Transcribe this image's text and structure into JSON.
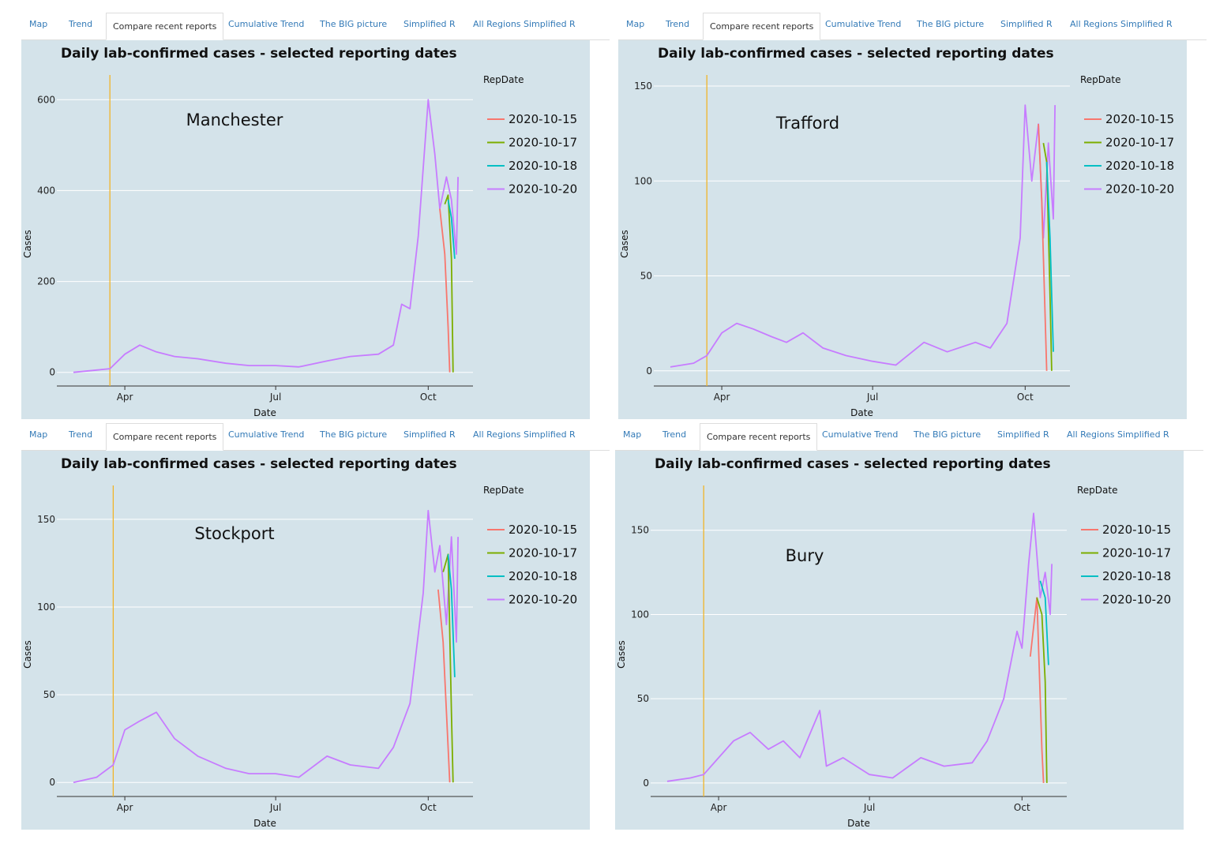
{
  "tabs": [
    "Map",
    "Trend",
    "Compare recent reports",
    "Cumulative Trend",
    "The BIG picture",
    "Simplified R",
    "All Regions Simplified R"
  ],
  "active_tab": 2,
  "colors": {
    "2020-10-15": "#f8766d",
    "2020-10-17": "#7cae00",
    "2020-10-18": "#00bfc4",
    "2020-10-20": "#c77cff",
    "vline": "#f0b429",
    "plot_bg": "#d4e3ea"
  },
  "chart_data": [
    {
      "type": "line",
      "region": "Manchester",
      "title": "Daily lab-confirmed cases - selected reporting dates",
      "xlabel": "Date",
      "ylabel": "Cases",
      "legend_title": "RepDate",
      "legend": [
        "2020-10-15",
        "2020-10-17",
        "2020-10-18",
        "2020-10-20"
      ],
      "x_ticks": [
        "Apr",
        "Jul",
        "Oct"
      ],
      "y_ticks": [
        0,
        200,
        400,
        600
      ],
      "ylim": [
        -30,
        630
      ],
      "vline": "2020-03-23",
      "series": [
        {
          "name": "2020-10-20",
          "dates": [
            "2020-03-01",
            "2020-03-15",
            "2020-03-23",
            "2020-04-01",
            "2020-04-10",
            "2020-04-20",
            "2020-05-01",
            "2020-05-15",
            "2020-06-01",
            "2020-06-15",
            "2020-07-01",
            "2020-07-15",
            "2020-08-01",
            "2020-08-15",
            "2020-09-01",
            "2020-09-10",
            "2020-09-15",
            "2020-09-20",
            "2020-09-25",
            "2020-10-01",
            "2020-10-05",
            "2020-10-08",
            "2020-10-12",
            "2020-10-15",
            "2020-10-18",
            "2020-10-19"
          ],
          "values": [
            0,
            5,
            8,
            40,
            60,
            45,
            35,
            30,
            20,
            15,
            15,
            12,
            25,
            35,
            40,
            60,
            150,
            140,
            300,
            600,
            480,
            360,
            430,
            380,
            260,
            430
          ]
        },
        {
          "name": "2020-10-15",
          "dates": [
            "2020-10-08",
            "2020-10-11",
            "2020-10-13",
            "2020-10-14"
          ],
          "values": [
            360,
            260,
            100,
            0
          ]
        },
        {
          "name": "2020-10-17",
          "dates": [
            "2020-10-11",
            "2020-10-13",
            "2020-10-15",
            "2020-10-16"
          ],
          "values": [
            370,
            390,
            250,
            0
          ]
        },
        {
          "name": "2020-10-18",
          "dates": [
            "2020-10-13",
            "2020-10-15",
            "2020-10-17"
          ],
          "values": [
            380,
            340,
            250
          ]
        }
      ]
    },
    {
      "type": "line",
      "region": "Trafford",
      "title": "Daily lab-confirmed cases - selected reporting dates",
      "xlabel": "Date",
      "ylabel": "Cases",
      "legend_title": "RepDate",
      "legend": [
        "2020-10-15",
        "2020-10-17",
        "2020-10-18",
        "2020-10-20"
      ],
      "x_ticks": [
        "Apr",
        "Jul",
        "Oct"
      ],
      "y_ticks": [
        0,
        50,
        100,
        150
      ],
      "ylim": [
        -8,
        150
      ],
      "vline": "2020-03-23",
      "series": [
        {
          "name": "2020-10-20",
          "dates": [
            "2020-03-01",
            "2020-03-15",
            "2020-03-23",
            "2020-04-01",
            "2020-04-10",
            "2020-04-20",
            "2020-05-01",
            "2020-05-10",
            "2020-05-20",
            "2020-06-01",
            "2020-06-15",
            "2020-07-01",
            "2020-07-15",
            "2020-08-01",
            "2020-08-15",
            "2020-09-01",
            "2020-09-10",
            "2020-09-20",
            "2020-09-28",
            "2020-10-01",
            "2020-10-05",
            "2020-10-09",
            "2020-10-12",
            "2020-10-15",
            "2020-10-18",
            "2020-10-19"
          ],
          "values": [
            2,
            4,
            8,
            20,
            25,
            22,
            18,
            15,
            20,
            12,
            8,
            5,
            3,
            15,
            10,
            15,
            12,
            25,
            70,
            140,
            100,
            130,
            70,
            120,
            80,
            140
          ]
        },
        {
          "name": "2020-10-15",
          "dates": [
            "2020-10-09",
            "2020-10-11",
            "2020-10-13",
            "2020-10-14"
          ],
          "values": [
            130,
            90,
            30,
            0
          ]
        },
        {
          "name": "2020-10-17",
          "dates": [
            "2020-10-12",
            "2020-10-14",
            "2020-10-16",
            "2020-10-17"
          ],
          "values": [
            120,
            110,
            40,
            0
          ]
        },
        {
          "name": "2020-10-18",
          "dates": [
            "2020-10-14",
            "2020-10-16",
            "2020-10-18"
          ],
          "values": [
            110,
            70,
            10
          ]
        }
      ]
    },
    {
      "type": "line",
      "region": "Stockport",
      "title": "Daily lab-confirmed cases - selected reporting dates",
      "xlabel": "Date",
      "ylabel": "Cases",
      "legend_title": "RepDate",
      "legend": [
        "2020-10-15",
        "2020-10-17",
        "2020-10-18",
        "2020-10-20"
      ],
      "x_ticks": [
        "Apr",
        "Jul",
        "Oct"
      ],
      "y_ticks": [
        0,
        50,
        100,
        150
      ],
      "ylim": [
        -8,
        163
      ],
      "vline": "2020-03-25",
      "series": [
        {
          "name": "2020-10-20",
          "dates": [
            "2020-03-01",
            "2020-03-15",
            "2020-03-25",
            "2020-04-01",
            "2020-04-10",
            "2020-04-20",
            "2020-05-01",
            "2020-05-15",
            "2020-06-01",
            "2020-06-15",
            "2020-07-01",
            "2020-07-15",
            "2020-08-01",
            "2020-08-15",
            "2020-09-01",
            "2020-09-10",
            "2020-09-20",
            "2020-09-28",
            "2020-10-01",
            "2020-10-05",
            "2020-10-08",
            "2020-10-12",
            "2020-10-15",
            "2020-10-18",
            "2020-10-19"
          ],
          "values": [
            0,
            3,
            10,
            30,
            35,
            40,
            25,
            15,
            8,
            5,
            5,
            3,
            15,
            10,
            8,
            20,
            45,
            108,
            155,
            120,
            135,
            90,
            140,
            80,
            140
          ]
        },
        {
          "name": "2020-10-15",
          "dates": [
            "2020-10-07",
            "2020-10-10",
            "2020-10-13",
            "2020-10-14"
          ],
          "values": [
            110,
            80,
            20,
            0
          ]
        },
        {
          "name": "2020-10-17",
          "dates": [
            "2020-10-10",
            "2020-10-13",
            "2020-10-15",
            "2020-10-16"
          ],
          "values": [
            120,
            130,
            40,
            0
          ]
        },
        {
          "name": "2020-10-18",
          "dates": [
            "2020-10-13",
            "2020-10-15",
            "2020-10-17"
          ],
          "values": [
            130,
            110,
            60
          ]
        }
      ]
    },
    {
      "type": "line",
      "region": "Bury",
      "title": "Daily lab-confirmed cases - selected reporting dates",
      "xlabel": "Date",
      "ylabel": "Cases",
      "legend_title": "RepDate",
      "legend": [
        "2020-10-15",
        "2020-10-17",
        "2020-10-18",
        "2020-10-20"
      ],
      "x_ticks": [
        "Apr",
        "Jul",
        "Oct"
      ],
      "y_ticks": [
        0,
        50,
        100,
        150
      ],
      "ylim": [
        -8,
        170
      ],
      "vline": "2020-03-23",
      "series": [
        {
          "name": "2020-10-20",
          "dates": [
            "2020-03-01",
            "2020-03-15",
            "2020-03-23",
            "2020-04-01",
            "2020-04-10",
            "2020-04-20",
            "2020-05-01",
            "2020-05-10",
            "2020-05-20",
            "2020-06-01",
            "2020-06-05",
            "2020-06-15",
            "2020-07-01",
            "2020-07-15",
            "2020-08-01",
            "2020-08-15",
            "2020-09-01",
            "2020-09-10",
            "2020-09-20",
            "2020-09-28",
            "2020-10-01",
            "2020-10-05",
            "2020-10-08",
            "2020-10-12",
            "2020-10-15",
            "2020-10-18",
            "2020-10-19"
          ],
          "values": [
            1,
            3,
            5,
            15,
            25,
            30,
            20,
            25,
            15,
            43,
            10,
            15,
            5,
            3,
            15,
            10,
            12,
            25,
            50,
            90,
            80,
            130,
            160,
            110,
            125,
            100,
            130
          ]
        },
        {
          "name": "2020-10-15",
          "dates": [
            "2020-10-06",
            "2020-10-10",
            "2020-10-13",
            "2020-10-14"
          ],
          "values": [
            75,
            110,
            20,
            0
          ]
        },
        {
          "name": "2020-10-17",
          "dates": [
            "2020-10-10",
            "2020-10-13",
            "2020-10-15",
            "2020-10-16"
          ],
          "values": [
            110,
            100,
            60,
            0
          ]
        },
        {
          "name": "2020-10-18",
          "dates": [
            "2020-10-12",
            "2020-10-15",
            "2020-10-17"
          ],
          "values": [
            120,
            110,
            70
          ]
        }
      ]
    }
  ]
}
